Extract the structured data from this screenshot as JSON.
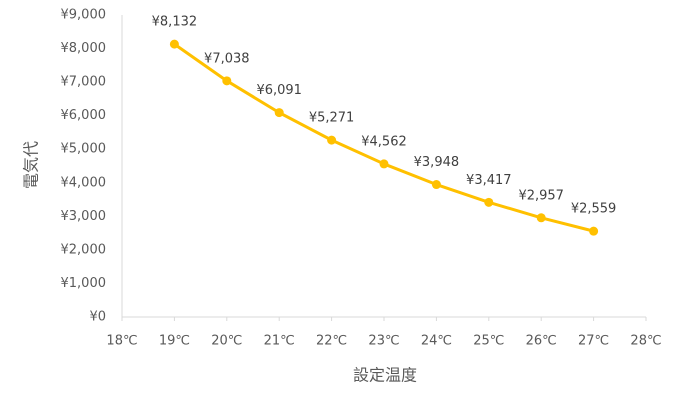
{
  "chart_data": {
    "type": "line",
    "x_label": "設定温度",
    "y_label": "電気代",
    "x": [
      19,
      20,
      21,
      22,
      23,
      24,
      25,
      26,
      27
    ],
    "values": [
      8132,
      7038,
      6091,
      5271,
      4562,
      3948,
      3417,
      2957,
      2559
    ],
    "value_labels": [
      "¥8,132",
      "¥7,038",
      "¥6,091",
      "¥5,271",
      "¥4,562",
      "¥3,948",
      "¥3,417",
      "¥2,957",
      "¥2,559"
    ],
    "color": "#FFC000",
    "xlim": [
      18,
      28
    ],
    "xticks": [
      {
        "value": 18,
        "label": "18℃"
      },
      {
        "value": 19,
        "label": "19℃"
      },
      {
        "value": 20,
        "label": "20℃"
      },
      {
        "value": 21,
        "label": "21℃"
      },
      {
        "value": 22,
        "label": "22℃"
      },
      {
        "value": 23,
        "label": "23℃"
      },
      {
        "value": 24,
        "label": "24℃"
      },
      {
        "value": 25,
        "label": "25℃"
      },
      {
        "value": 26,
        "label": "26℃"
      },
      {
        "value": 27,
        "label": "27℃"
      },
      {
        "value": 28,
        "label": "28℃"
      }
    ],
    "ylim": [
      0,
      9000
    ],
    "yticks": [
      {
        "value": 0,
        "label": "¥0"
      },
      {
        "value": 1000,
        "label": "¥1,000"
      },
      {
        "value": 2000,
        "label": "¥2,000"
      },
      {
        "value": 3000,
        "label": "¥3,000"
      },
      {
        "value": 4000,
        "label": "¥4,000"
      },
      {
        "value": 5000,
        "label": "¥5,000"
      },
      {
        "value": 6000,
        "label": "¥6,000"
      },
      {
        "value": 7000,
        "label": "¥7,000"
      },
      {
        "value": 8000,
        "label": "¥8,000"
      },
      {
        "value": 9000,
        "label": "¥9,000"
      }
    ],
    "grid": false
  }
}
